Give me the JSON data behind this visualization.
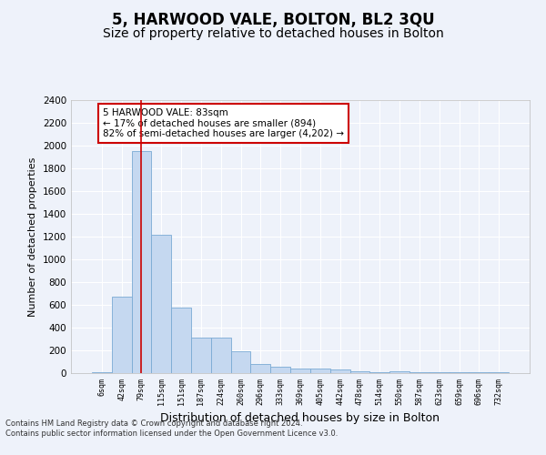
{
  "title": "5, HARWOOD VALE, BOLTON, BL2 3QU",
  "subtitle": "Size of property relative to detached houses in Bolton",
  "xlabel": "Distribution of detached houses by size in Bolton",
  "ylabel": "Number of detached properties",
  "categories": [
    "6sqm",
    "42sqm",
    "79sqm",
    "115sqm",
    "151sqm",
    "187sqm",
    "224sqm",
    "260sqm",
    "296sqm",
    "333sqm",
    "369sqm",
    "405sqm",
    "442sqm",
    "478sqm",
    "514sqm",
    "550sqm",
    "587sqm",
    "623sqm",
    "659sqm",
    "696sqm",
    "732sqm"
  ],
  "values": [
    10,
    670,
    1950,
    1220,
    580,
    310,
    310,
    195,
    80,
    55,
    40,
    40,
    35,
    15,
    10,
    15,
    10,
    10,
    10,
    10,
    10
  ],
  "bar_color": "#c5d8f0",
  "bar_edge_color": "#7aaad4",
  "ylim": [
    0,
    2400
  ],
  "yticks": [
    0,
    200,
    400,
    600,
    800,
    1000,
    1200,
    1400,
    1600,
    1800,
    2000,
    2200,
    2400
  ],
  "subject_bar_index": 2,
  "vline_color": "#cc0000",
  "annotation_text": "5 HARWOOD VALE: 83sqm\n← 17% of detached houses are smaller (894)\n82% of semi-detached houses are larger (4,202) →",
  "annotation_box_color": "#ffffff",
  "annotation_box_edge": "#cc0000",
  "footer_line1": "Contains HM Land Registry data © Crown copyright and database right 2024.",
  "footer_line2": "Contains public sector information licensed under the Open Government Licence v3.0.",
  "background_color": "#eef2fa",
  "grid_color": "#ffffff",
  "title_fontsize": 12,
  "subtitle_fontsize": 10,
  "ylabel_fontsize": 8,
  "xlabel_fontsize": 9
}
